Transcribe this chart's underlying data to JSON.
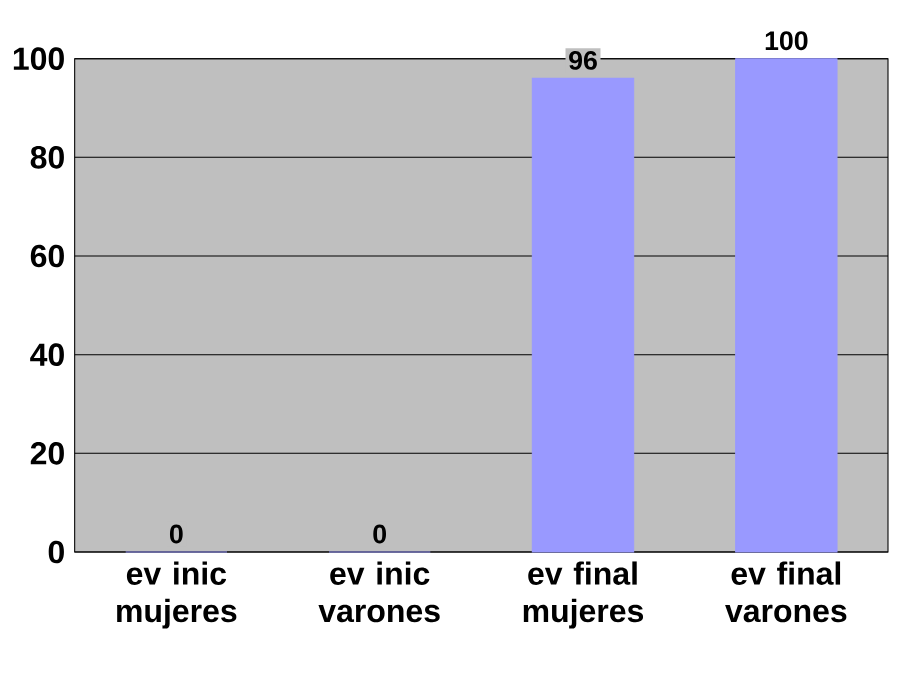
{
  "chart_data": {
    "type": "bar",
    "categories": [
      "ev inic mujeres",
      "ev inic varones",
      "ev final mujeres",
      "ev final varones"
    ],
    "values": [
      0,
      0,
      96,
      100
    ],
    "color": "#9999ff",
    "ylim": [
      0,
      100
    ],
    "yticks": [
      0,
      20,
      40,
      60,
      80,
      100
    ],
    "grid": "y",
    "data_labels": true
  }
}
